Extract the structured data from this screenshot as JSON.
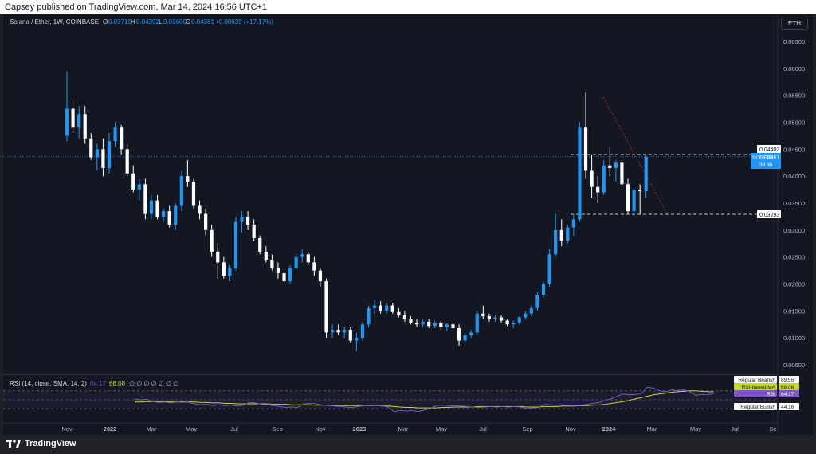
{
  "header": {
    "published": "Capsey published on TradingView.com, Mar 14, 2024 16:56 UTC+1",
    "symbol_tab": "ETH"
  },
  "legend": {
    "instrument": "Solana / Ether, 1W, COINBASE",
    "o_label": "O",
    "o_value": "0.03719",
    "h_label": "H",
    "h_value": "0.04392",
    "l_label": "L",
    "l_value": "0.03600",
    "c_label": "C",
    "c_value": "0.04361",
    "change": "+0.00639 (+17.17%)"
  },
  "price_badges": {
    "upper_level": "0.04402",
    "lower_level": "0.03293",
    "symbol": "SOLETH",
    "last_price": "0.04361",
    "countdown": "3d 9h"
  },
  "rsi": {
    "legend_title": "RSI (14, close, SMA, 14, 2)",
    "rsi_value": "64.17",
    "ma_value": "68.08",
    "extra": "∅ ∅ ∅ ∅ ∅ ∅ ∅",
    "badges": [
      {
        "label": "Regular Bearish",
        "value": "89.55",
        "style": "white"
      },
      {
        "label": "RSI-based MA",
        "value": "68.08",
        "style": "yellow"
      },
      {
        "label": "RSI",
        "value": "64.17",
        "style": "purple"
      },
      {
        "label": "Regular Bullish",
        "value": "44.16",
        "style": "white"
      }
    ]
  },
  "footer": {
    "brand": "TradingView"
  },
  "colors": {
    "bg": "#131722",
    "up": "#2196f3",
    "down": "#ffffff",
    "rsi_line": "#7e57c2",
    "rsi_ma": "#c6d82b",
    "text": "#b2b5be"
  },
  "chart_data": {
    "type": "candlestick",
    "title": "Solana / Ether, 1W, COINBASE",
    "ylim": [
      0.003,
      0.068
    ],
    "y_ticks": [
      "0.06500",
      "0.06000",
      "0.05500",
      "0.05000",
      "0.04500",
      "0.04000",
      "0.03500",
      "0.03000",
      "0.02500",
      "0.02000",
      "0.01500",
      "0.01000",
      "0.00500"
    ],
    "x_ticks": [
      "Nov",
      "2022",
      "Mar",
      "May",
      "Jul",
      "Sep",
      "Nov",
      "2023",
      "Mar",
      "May",
      "Jul",
      "Sep",
      "Nov",
      "2024",
      "Mar",
      "May",
      "Jul",
      "Se"
    ],
    "horizontal_levels": [
      0.04402,
      0.03293
    ],
    "last_close": 0.04361,
    "candles": [
      {
        "o": 0.0475,
        "h": 0.0595,
        "l": 0.0465,
        "c": 0.0525
      },
      {
        "o": 0.0525,
        "h": 0.054,
        "l": 0.048,
        "c": 0.049
      },
      {
        "o": 0.049,
        "h": 0.053,
        "l": 0.047,
        "c": 0.0515
      },
      {
        "o": 0.0515,
        "h": 0.053,
        "l": 0.046,
        "c": 0.047
      },
      {
        "o": 0.047,
        "h": 0.048,
        "l": 0.043,
        "c": 0.0435
      },
      {
        "o": 0.0435,
        "h": 0.046,
        "l": 0.041,
        "c": 0.045
      },
      {
        "o": 0.045,
        "h": 0.047,
        "l": 0.04,
        "c": 0.0415
      },
      {
        "o": 0.0415,
        "h": 0.048,
        "l": 0.0405,
        "c": 0.0465
      },
      {
        "o": 0.0465,
        "h": 0.05,
        "l": 0.0455,
        "c": 0.049
      },
      {
        "o": 0.049,
        "h": 0.0495,
        "l": 0.044,
        "c": 0.045
      },
      {
        "o": 0.045,
        "h": 0.046,
        "l": 0.04,
        "c": 0.0405
      },
      {
        "o": 0.0405,
        "h": 0.042,
        "l": 0.037,
        "c": 0.0375
      },
      {
        "o": 0.0375,
        "h": 0.0395,
        "l": 0.0355,
        "c": 0.0385
      },
      {
        "o": 0.0385,
        "h": 0.0395,
        "l": 0.032,
        "c": 0.033
      },
      {
        "o": 0.033,
        "h": 0.0365,
        "l": 0.032,
        "c": 0.0355
      },
      {
        "o": 0.0355,
        "h": 0.0365,
        "l": 0.032,
        "c": 0.0325
      },
      {
        "o": 0.0325,
        "h": 0.034,
        "l": 0.0315,
        "c": 0.0335
      },
      {
        "o": 0.0335,
        "h": 0.0345,
        "l": 0.0305,
        "c": 0.031
      },
      {
        "o": 0.031,
        "h": 0.035,
        "l": 0.03,
        "c": 0.0345
      },
      {
        "o": 0.0345,
        "h": 0.041,
        "l": 0.0335,
        "c": 0.04
      },
      {
        "o": 0.04,
        "h": 0.043,
        "l": 0.038,
        "c": 0.039
      },
      {
        "o": 0.039,
        "h": 0.0395,
        "l": 0.034,
        "c": 0.0345
      },
      {
        "o": 0.0345,
        "h": 0.0355,
        "l": 0.032,
        "c": 0.033
      },
      {
        "o": 0.033,
        "h": 0.034,
        "l": 0.029,
        "c": 0.03
      },
      {
        "o": 0.03,
        "h": 0.031,
        "l": 0.025,
        "c": 0.026
      },
      {
        "o": 0.026,
        "h": 0.0275,
        "l": 0.021,
        "c": 0.024
      },
      {
        "o": 0.024,
        "h": 0.025,
        "l": 0.021,
        "c": 0.0215
      },
      {
        "o": 0.0215,
        "h": 0.0235,
        "l": 0.0205,
        "c": 0.023
      },
      {
        "o": 0.023,
        "h": 0.0325,
        "l": 0.0225,
        "c": 0.0315
      },
      {
        "o": 0.0315,
        "h": 0.0335,
        "l": 0.0295,
        "c": 0.0325
      },
      {
        "o": 0.0325,
        "h": 0.0335,
        "l": 0.03,
        "c": 0.031
      },
      {
        "o": 0.031,
        "h": 0.032,
        "l": 0.028,
        "c": 0.0285
      },
      {
        "o": 0.0285,
        "h": 0.029,
        "l": 0.0255,
        "c": 0.026
      },
      {
        "o": 0.026,
        "h": 0.027,
        "l": 0.024,
        "c": 0.0245
      },
      {
        "o": 0.0245,
        "h": 0.0255,
        "l": 0.0225,
        "c": 0.023
      },
      {
        "o": 0.023,
        "h": 0.024,
        "l": 0.021,
        "c": 0.022
      },
      {
        "o": 0.022,
        "h": 0.023,
        "l": 0.02,
        "c": 0.0205
      },
      {
        "o": 0.0205,
        "h": 0.0235,
        "l": 0.02,
        "c": 0.023
      },
      {
        "o": 0.023,
        "h": 0.0255,
        "l": 0.0225,
        "c": 0.025
      },
      {
        "o": 0.025,
        "h": 0.0265,
        "l": 0.024,
        "c": 0.0255
      },
      {
        "o": 0.0255,
        "h": 0.026,
        "l": 0.0235,
        "c": 0.024
      },
      {
        "o": 0.024,
        "h": 0.025,
        "l": 0.0215,
        "c": 0.0225
      },
      {
        "o": 0.0225,
        "h": 0.023,
        "l": 0.0195,
        "c": 0.0205
      },
      {
        "o": 0.0205,
        "h": 0.021,
        "l": 0.01,
        "c": 0.011
      },
      {
        "o": 0.011,
        "h": 0.0125,
        "l": 0.01,
        "c": 0.0115
      },
      {
        "o": 0.0115,
        "h": 0.0125,
        "l": 0.0105,
        "c": 0.011
      },
      {
        "o": 0.011,
        "h": 0.012,
        "l": 0.01,
        "c": 0.0115
      },
      {
        "o": 0.0115,
        "h": 0.012,
        "l": 0.009,
        "c": 0.0095
      },
      {
        "o": 0.0095,
        "h": 0.011,
        "l": 0.0075,
        "c": 0.01
      },
      {
        "o": 0.01,
        "h": 0.013,
        "l": 0.0095,
        "c": 0.0125
      },
      {
        "o": 0.0125,
        "h": 0.016,
        "l": 0.012,
        "c": 0.0155
      },
      {
        "o": 0.0155,
        "h": 0.017,
        "l": 0.0145,
        "c": 0.016
      },
      {
        "o": 0.016,
        "h": 0.0168,
        "l": 0.0145,
        "c": 0.015
      },
      {
        "o": 0.015,
        "h": 0.0165,
        "l": 0.0145,
        "c": 0.016
      },
      {
        "o": 0.016,
        "h": 0.0165,
        "l": 0.0145,
        "c": 0.0148
      },
      {
        "o": 0.0148,
        "h": 0.0155,
        "l": 0.0138,
        "c": 0.0142
      },
      {
        "o": 0.0142,
        "h": 0.015,
        "l": 0.013,
        "c": 0.0135
      },
      {
        "o": 0.0135,
        "h": 0.014,
        "l": 0.0125,
        "c": 0.0128
      },
      {
        "o": 0.0128,
        "h": 0.0135,
        "l": 0.012,
        "c": 0.0125
      },
      {
        "o": 0.0125,
        "h": 0.0135,
        "l": 0.012,
        "c": 0.013
      },
      {
        "o": 0.013,
        "h": 0.0135,
        "l": 0.0118,
        "c": 0.0122
      },
      {
        "o": 0.0122,
        "h": 0.0132,
        "l": 0.0118,
        "c": 0.0128
      },
      {
        "o": 0.0128,
        "h": 0.0132,
        "l": 0.0115,
        "c": 0.012
      },
      {
        "o": 0.012,
        "h": 0.0128,
        "l": 0.0112,
        "c": 0.0125
      },
      {
        "o": 0.0125,
        "h": 0.013,
        "l": 0.0115,
        "c": 0.0118
      },
      {
        "o": 0.0118,
        "h": 0.0125,
        "l": 0.0085,
        "c": 0.0095
      },
      {
        "o": 0.0095,
        "h": 0.011,
        "l": 0.009,
        "c": 0.0105
      },
      {
        "o": 0.0105,
        "h": 0.0115,
        "l": 0.01,
        "c": 0.011
      },
      {
        "o": 0.011,
        "h": 0.015,
        "l": 0.0105,
        "c": 0.0145
      },
      {
        "o": 0.0145,
        "h": 0.016,
        "l": 0.0135,
        "c": 0.014
      },
      {
        "o": 0.014,
        "h": 0.0145,
        "l": 0.013,
        "c": 0.0135
      },
      {
        "o": 0.0135,
        "h": 0.0142,
        "l": 0.013,
        "c": 0.0138
      },
      {
        "o": 0.0138,
        "h": 0.0142,
        "l": 0.0128,
        "c": 0.0132
      },
      {
        "o": 0.0132,
        "h": 0.0135,
        "l": 0.0122,
        "c": 0.0125
      },
      {
        "o": 0.0125,
        "h": 0.0132,
        "l": 0.0118,
        "c": 0.0128
      },
      {
        "o": 0.0128,
        "h": 0.014,
        "l": 0.0125,
        "c": 0.0138
      },
      {
        "o": 0.0138,
        "h": 0.015,
        "l": 0.0135,
        "c": 0.0145
      },
      {
        "o": 0.0145,
        "h": 0.016,
        "l": 0.014,
        "c": 0.0155
      },
      {
        "o": 0.0155,
        "h": 0.0185,
        "l": 0.015,
        "c": 0.018
      },
      {
        "o": 0.018,
        "h": 0.0205,
        "l": 0.0175,
        "c": 0.02
      },
      {
        "o": 0.02,
        "h": 0.0265,
        "l": 0.0195,
        "c": 0.0255
      },
      {
        "o": 0.0255,
        "h": 0.033,
        "l": 0.025,
        "c": 0.03
      },
      {
        "o": 0.03,
        "h": 0.032,
        "l": 0.027,
        "c": 0.028
      },
      {
        "o": 0.028,
        "h": 0.031,
        "l": 0.0275,
        "c": 0.0305
      },
      {
        "o": 0.0305,
        "h": 0.033,
        "l": 0.029,
        "c": 0.032
      },
      {
        "o": 0.032,
        "h": 0.05,
        "l": 0.0315,
        "c": 0.049
      },
      {
        "o": 0.049,
        "h": 0.0555,
        "l": 0.0395,
        "c": 0.041
      },
      {
        "o": 0.041,
        "h": 0.044,
        "l": 0.036,
        "c": 0.038
      },
      {
        "o": 0.038,
        "h": 0.04,
        "l": 0.035,
        "c": 0.037
      },
      {
        "o": 0.037,
        "h": 0.043,
        "l": 0.0365,
        "c": 0.042
      },
      {
        "o": 0.042,
        "h": 0.0455,
        "l": 0.04,
        "c": 0.0415
      },
      {
        "o": 0.0415,
        "h": 0.043,
        "l": 0.039,
        "c": 0.0425
      },
      {
        "o": 0.0425,
        "h": 0.043,
        "l": 0.038,
        "c": 0.0385
      },
      {
        "o": 0.0385,
        "h": 0.0395,
        "l": 0.033,
        "c": 0.0335
      },
      {
        "o": 0.0335,
        "h": 0.038,
        "l": 0.0325,
        "c": 0.0375
      },
      {
        "o": 0.0375,
        "h": 0.0385,
        "l": 0.033,
        "c": 0.0372
      },
      {
        "o": 0.0372,
        "h": 0.0439,
        "l": 0.036,
        "c": 0.0436
      }
    ],
    "rsi_series": [
      52,
      50,
      51,
      46,
      44,
      45,
      43,
      45,
      47,
      44,
      41,
      39,
      40,
      37,
      39,
      37,
      38,
      36,
      38,
      44,
      43,
      40,
      39,
      37,
      35,
      33,
      34,
      33,
      41,
      42,
      41,
      39,
      37,
      36,
      35,
      34,
      33,
      35,
      37,
      38,
      37,
      36,
      34,
      24,
      26,
      25,
      26,
      24,
      27,
      30,
      37,
      38,
      36,
      37,
      36,
      35,
      34,
      33,
      34,
      35,
      34,
      35,
      34,
      35,
      34,
      30,
      32,
      33,
      40,
      39,
      38,
      39,
      38,
      37,
      38,
      40,
      42,
      44,
      49,
      52,
      58,
      63,
      61,
      62,
      64,
      78,
      76,
      70,
      68,
      72,
      71,
      72,
      69,
      60,
      62,
      61,
      64
    ],
    "rsi_ma_series": [
      45,
      45,
      46,
      46,
      46,
      46,
      45,
      45,
      45,
      45,
      45,
      44,
      44,
      43,
      43,
      42,
      42,
      41,
      41,
      41,
      41,
      41,
      41,
      40,
      40,
      40,
      39,
      39,
      39,
      39,
      38,
      38,
      38,
      37,
      37,
      37,
      37,
      37,
      37,
      37,
      37,
      36,
      36,
      35,
      34,
      33,
      33,
      32,
      32,
      32,
      32,
      33,
      33,
      34,
      34,
      34,
      34,
      35,
      35,
      35,
      35,
      35,
      35,
      35,
      35,
      34,
      34,
      34,
      35,
      35,
      35,
      36,
      36,
      36,
      37,
      37,
      38,
      39,
      40,
      42,
      44,
      46,
      49,
      52,
      55,
      58,
      61,
      63,
      65,
      67,
      68,
      69,
      70,
      70,
      69,
      68,
      68
    ]
  }
}
